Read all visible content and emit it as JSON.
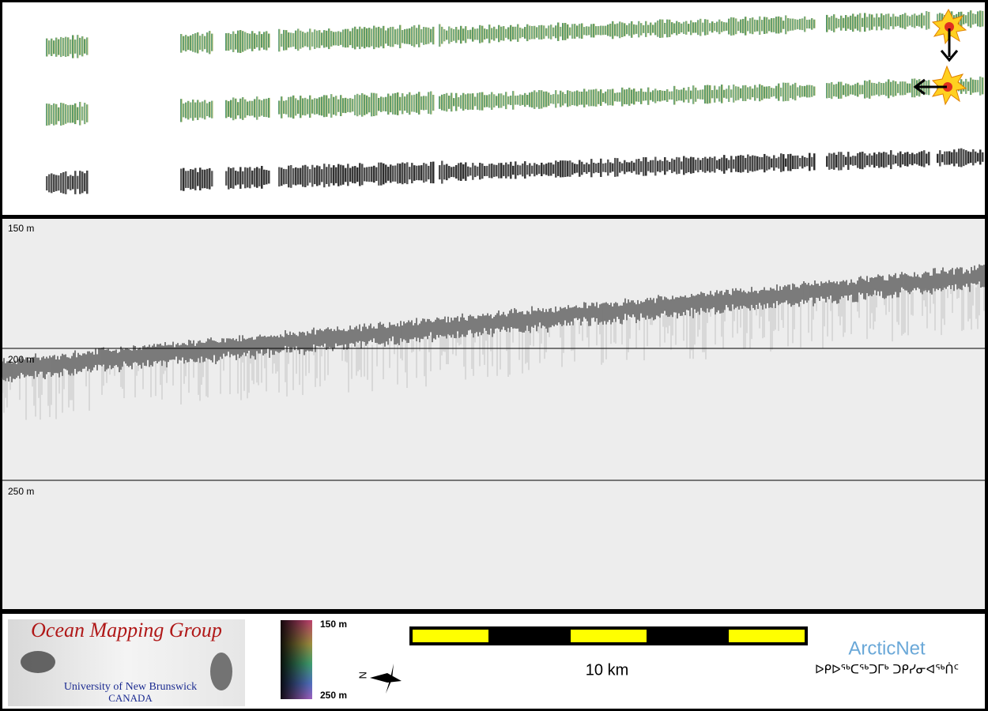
{
  "echogram": {
    "depth_labels": [
      "150 m",
      "200 m",
      "250 m"
    ]
  },
  "footer": {
    "logo": {
      "title": "Ocean Mapping Group",
      "university": "University of New Brunswick",
      "country": "CANADA"
    },
    "colorbar": {
      "top_label": "150 m",
      "bottom_label": "250 m"
    },
    "scale_bar": {
      "label": "10 km"
    },
    "partner": {
      "name": "ArcticNet",
      "name_inuktitut": "ᐅᑭᐅᖅᑕᖅᑐᒥᒃ ᑐᑭᓯᓂᐊᖅᑏᑦ"
    }
  }
}
